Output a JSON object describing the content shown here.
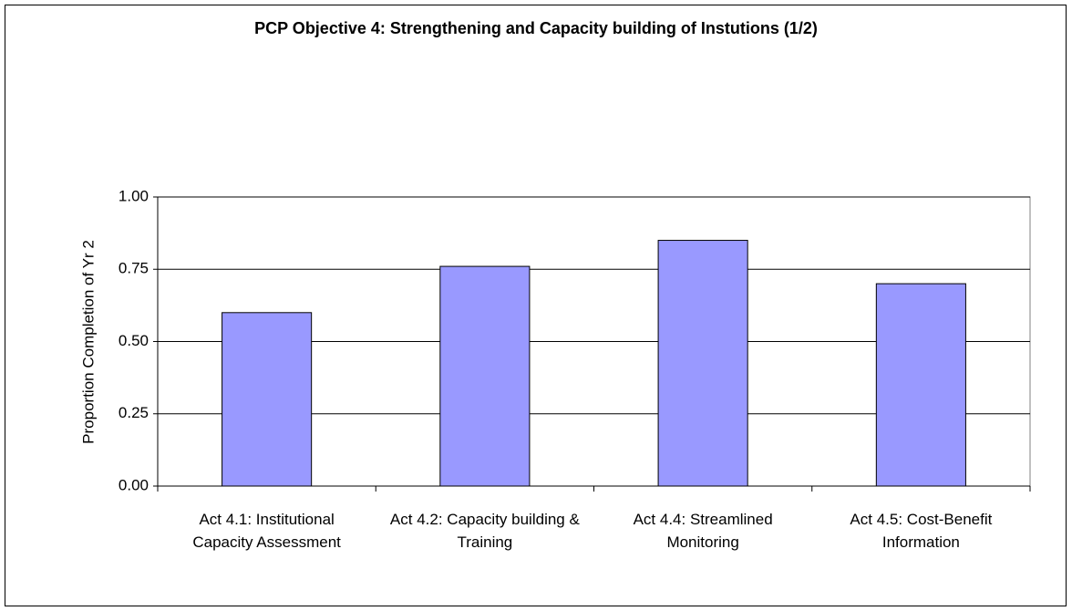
{
  "chart_data": {
    "type": "bar",
    "title": "PCP Objective 4: Strengthening and Capacity building of Instutions (1/2)",
    "y_label": "Proportion Completion of Yr 2",
    "categories": [
      "Act 4.1: Institutional Capacity Assessment",
      "Act 4.2: Capacity building & Training",
      "Act 4.4: Streamlined Monitoring",
      "Act 4.5:  Cost-Benefit Information"
    ],
    "values": [
      0.6,
      0.76,
      0.85,
      0.7
    ],
    "color": "#9999ff",
    "ylim": [
      0,
      1
    ],
    "yticks": [
      {
        "value": 0,
        "label": "0.00"
      },
      {
        "value": 0.25,
        "label": "0.25"
      },
      {
        "value": 0.5,
        "label": "0.50"
      },
      {
        "value": 0.75,
        "label": "0.75"
      },
      {
        "value": 1,
        "label": "1.00"
      }
    ],
    "grid": true
  }
}
